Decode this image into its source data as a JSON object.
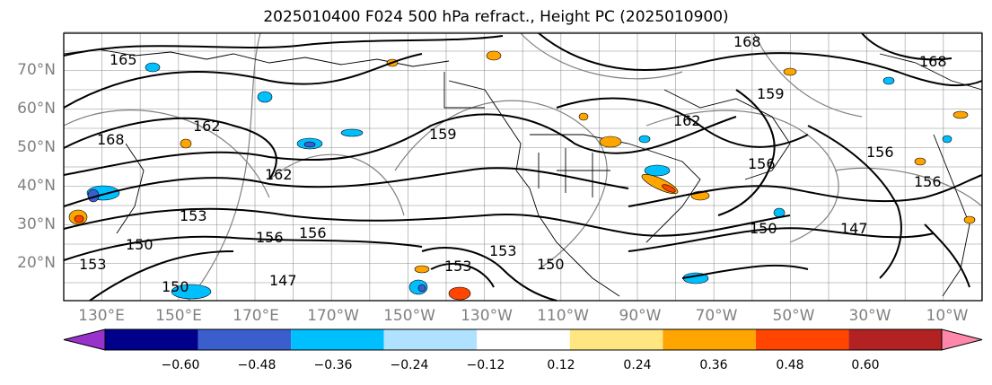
{
  "title": "2025010400 F024 500 hPa refract., Height PC (2025010900)",
  "lat_labels": [
    "70°N",
    "60°N",
    "50°N",
    "40°N",
    "30°N",
    "20°N"
  ],
  "lon_labels": [
    "130°E",
    "150°E",
    "170°E",
    "170°W",
    "150°W",
    "130°W",
    "110°W",
    "90°W",
    "70°W",
    "50°W",
    "30°W",
    "10°W"
  ],
  "contour_labels": [
    "165",
    "168",
    "162",
    "159",
    "162",
    "153",
    "156",
    "156",
    "150",
    "150",
    "153",
    "147",
    "153",
    "150",
    "168",
    "168",
    "159",
    "162",
    "156",
    "156",
    "156",
    "153",
    "150",
    "147"
  ],
  "colorbar": {
    "ticks": [
      "−0.60",
      "−0.48",
      "−0.36",
      "−0.24",
      "−0.12",
      "0.12",
      "0.24",
      "0.36",
      "0.48",
      "0.60"
    ],
    "colors": [
      "#9932cc",
      "#00008b",
      "#3a5fcd",
      "#00bfff",
      "#b0e2ff",
      "#ffffff",
      "#ffe680",
      "#ffa500",
      "#ff4500",
      "#b22222",
      "#ff88aa"
    ]
  },
  "colors": {
    "positive_fill": "#ffa500",
    "negative_fill": "#1e90ff",
    "contour": "#000000",
    "graticule": "#808080"
  }
}
